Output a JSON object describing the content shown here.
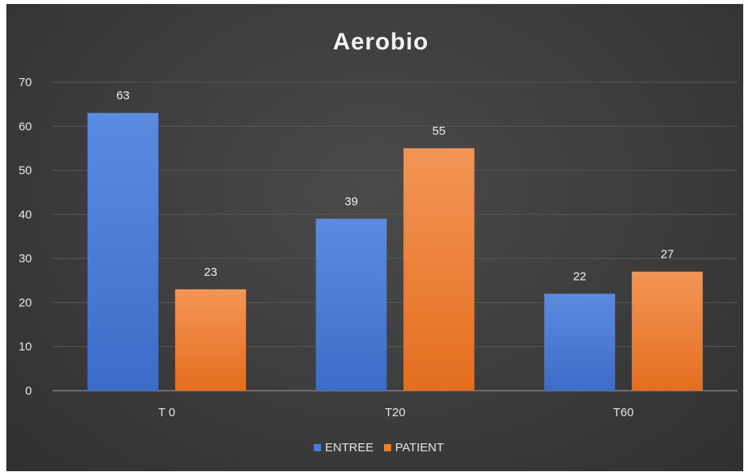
{
  "chart_data": {
    "type": "bar",
    "title": "Aerobio",
    "categories": [
      "T 0",
      "T20",
      "T60"
    ],
    "series": [
      {
        "name": "ENTREE",
        "values": [
          63,
          39,
          22
        ],
        "color": "#4a7bd6"
      },
      {
        "name": "PATIENT",
        "values": [
          23,
          55,
          27
        ],
        "color": "#ed7d31"
      }
    ],
    "ylim": [
      0,
      70
    ],
    "yticks": [
      0,
      10,
      20,
      30,
      40,
      50,
      60,
      70
    ],
    "grid": true,
    "legend": "bottom",
    "background": "#3a3a3a"
  }
}
